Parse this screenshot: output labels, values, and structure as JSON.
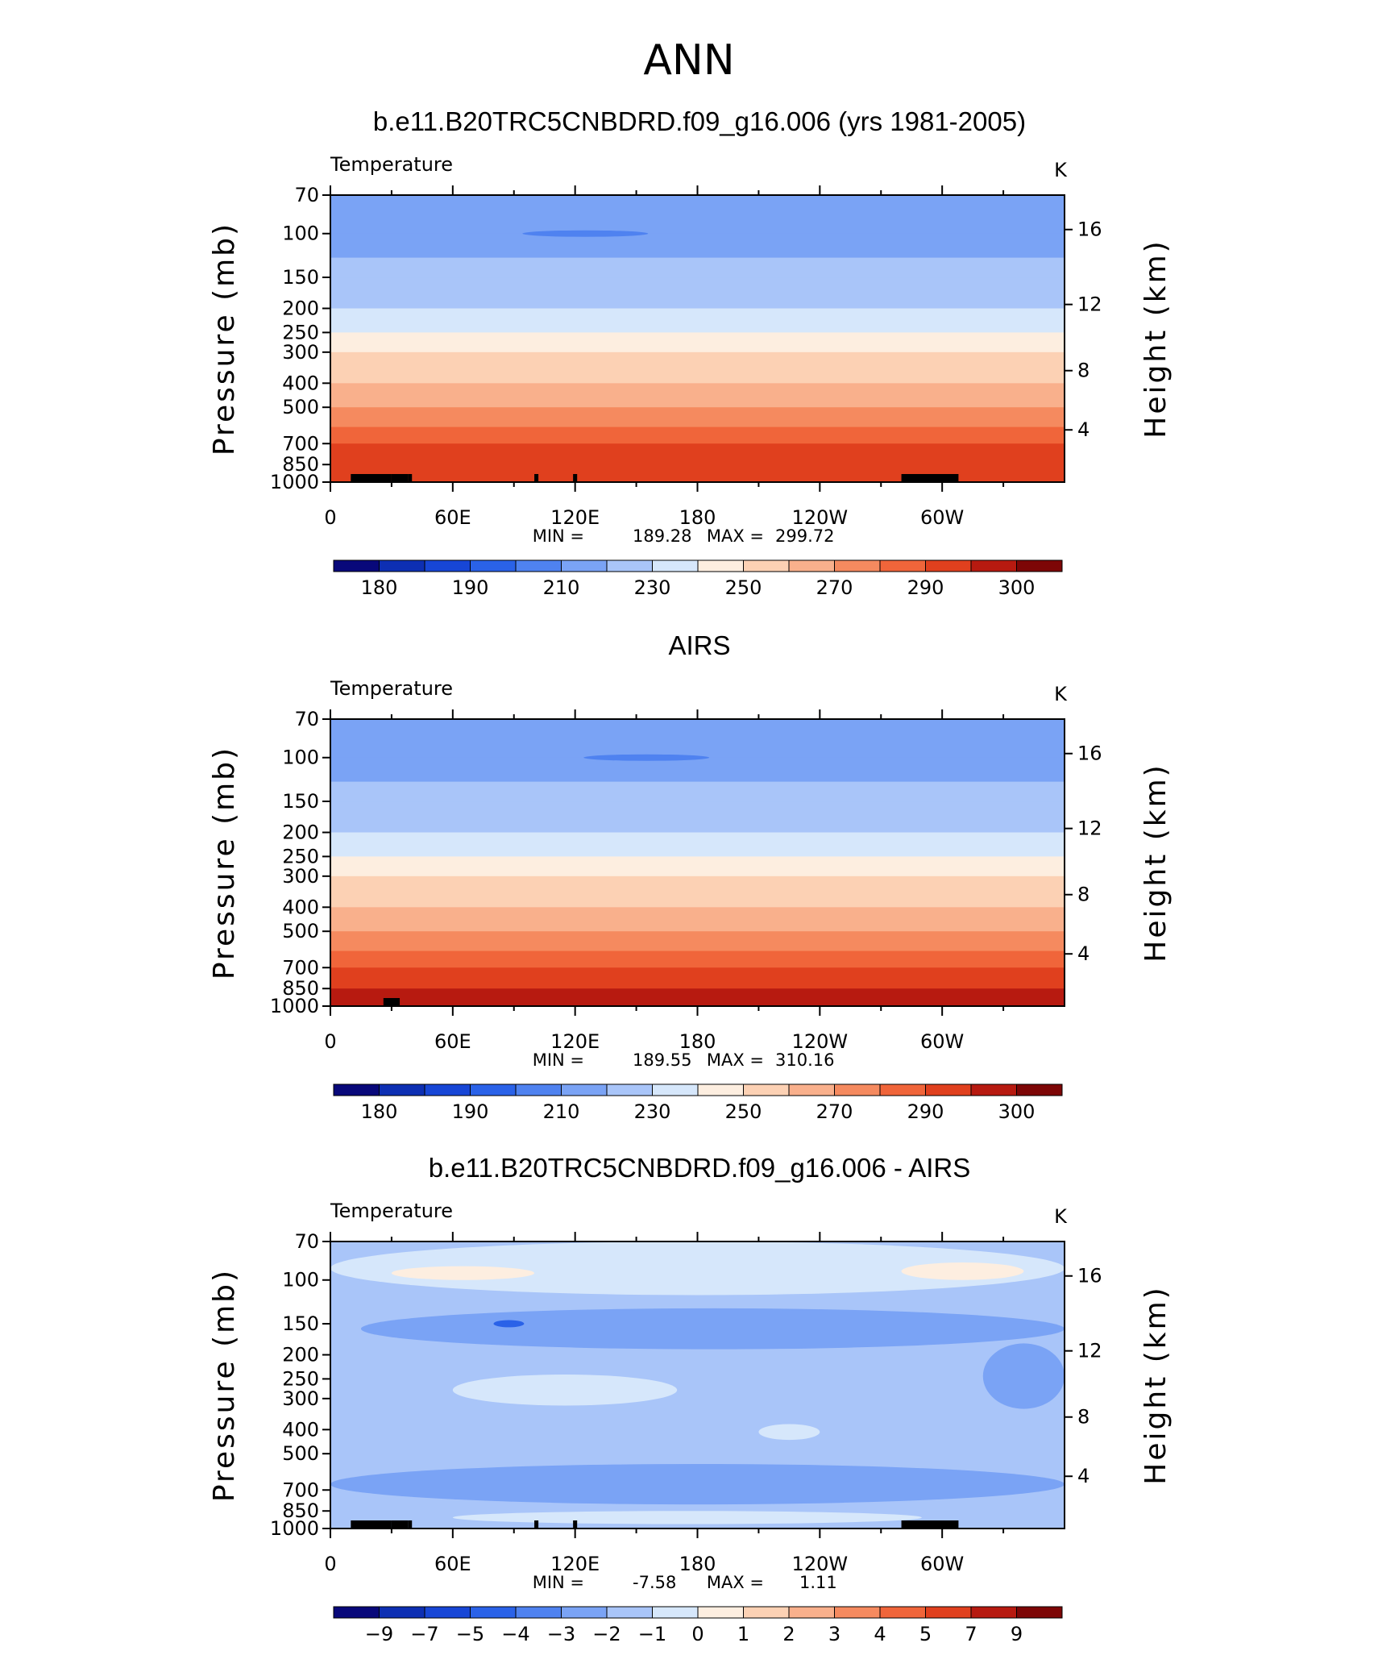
{
  "figure": {
    "title": "ANN"
  },
  "chart_data": [
    {
      "type": "heatmap",
      "title": "b.e11.B20TRC5CNBDRD.f09_g16.006 (yrs 1981-2005)",
      "variable": "Temperature",
      "units": "K",
      "ylabel": "Pressure (mb)",
      "y2label": "Height (km)",
      "x_ticks": [
        "0",
        "60E",
        "120E",
        "180",
        "120W",
        "60W"
      ],
      "y_ticks": [
        "70",
        "100",
        "150",
        "200",
        "250",
        "300",
        "400",
        "500",
        "700",
        "850",
        "1000"
      ],
      "y2_ticks": [
        "16",
        "12",
        "8",
        "4"
      ],
      "ylim": [
        1000,
        70
      ],
      "y_scale": "log",
      "min_label": "MIN =",
      "min": "189.28",
      "max_label": "MAX =",
      "max": "299.72",
      "colorbar_labels": [
        "180",
        "190",
        "210",
        "230",
        "250",
        "270",
        "290",
        "300"
      ],
      "colors": [
        "#08087a",
        "#0d2fb3",
        "#1746d6",
        "#2a62e8",
        "#4f82f0",
        "#7aa3f5",
        "#a9c5f9",
        "#d6e7fb",
        "#fdeee0",
        "#fcd1b4",
        "#f9b08c",
        "#f58a5f",
        "#f0653a",
        "#e0401e",
        "#b71a10",
        "#7d0606"
      ],
      "levels": [
        {
          "p": 70,
          "v": 206
        },
        {
          "p": 100,
          "v": 205
        },
        {
          "p": 125,
          "v": 209
        },
        {
          "p": 150,
          "v": 213
        },
        {
          "p": 200,
          "v": 218
        },
        {
          "p": 250,
          "v": 227
        },
        {
          "p": 300,
          "v": 236
        },
        {
          "p": 400,
          "v": 250
        },
        {
          "p": 500,
          "v": 262
        },
        {
          "p": 600,
          "v": 270
        },
        {
          "p": 700,
          "v": 277
        },
        {
          "p": 850,
          "v": 285
        },
        {
          "p": 1000,
          "v": 293
        }
      ],
      "cold_spot": {
        "lon": 125,
        "p": 100,
        "v": 190
      },
      "topo_cells": [
        [
          10,
          30
        ],
        [
          30,
          38
        ],
        [
          38,
          40
        ],
        [
          100,
          102
        ],
        [
          119,
          121
        ],
        [
          280,
          308
        ]
      ]
    },
    {
      "type": "heatmap",
      "title": "AIRS",
      "variable": "Temperature",
      "units": "K",
      "ylabel": "Pressure (mb)",
      "y2label": "Height (km)",
      "x_ticks": [
        "0",
        "60E",
        "120E",
        "180",
        "120W",
        "60W"
      ],
      "y_ticks": [
        "70",
        "100",
        "150",
        "200",
        "250",
        "300",
        "400",
        "500",
        "700",
        "850",
        "1000"
      ],
      "y2_ticks": [
        "16",
        "12",
        "8",
        "4"
      ],
      "ylim": [
        1000,
        70
      ],
      "y_scale": "log",
      "min_label": "MIN =",
      "min": "189.55",
      "max_label": "MAX =",
      "max": "310.16",
      "colorbar_labels": [
        "180",
        "190",
        "210",
        "230",
        "250",
        "270",
        "290",
        "300"
      ],
      "colors": [
        "#08087a",
        "#0d2fb3",
        "#1746d6",
        "#2a62e8",
        "#4f82f0",
        "#7aa3f5",
        "#a9c5f9",
        "#d6e7fb",
        "#fdeee0",
        "#fcd1b4",
        "#f9b08c",
        "#f58a5f",
        "#f0653a",
        "#e0401e",
        "#b71a10",
        "#7d0606"
      ],
      "levels": [
        {
          "p": 70,
          "v": 206
        },
        {
          "p": 100,
          "v": 205
        },
        {
          "p": 125,
          "v": 209
        },
        {
          "p": 150,
          "v": 213
        },
        {
          "p": 200,
          "v": 218
        },
        {
          "p": 250,
          "v": 227
        },
        {
          "p": 300,
          "v": 236
        },
        {
          "p": 400,
          "v": 250
        },
        {
          "p": 500,
          "v": 262
        },
        {
          "p": 600,
          "v": 270
        },
        {
          "p": 700,
          "v": 277
        },
        {
          "p": 850,
          "v": 287
        },
        {
          "p": 1000,
          "v": 298
        }
      ],
      "cold_spot": {
        "lon": 155,
        "p": 100,
        "v": 190
      },
      "topo_cells": [
        [
          26,
          34
        ]
      ]
    },
    {
      "type": "heatmap",
      "title": "b.e11.B20TRC5CNBDRD.f09_g16.006 - AIRS",
      "variable": "Temperature",
      "units": "K",
      "ylabel": "Pressure (mb)",
      "y2label": "Height (km)",
      "x_ticks": [
        "0",
        "60E",
        "120E",
        "180",
        "120W",
        "60W"
      ],
      "y_ticks": [
        "70",
        "100",
        "150",
        "200",
        "250",
        "300",
        "400",
        "500",
        "700",
        "850",
        "1000"
      ],
      "y2_ticks": [
        "16",
        "12",
        "8",
        "4"
      ],
      "ylim": [
        1000,
        70
      ],
      "y_scale": "log",
      "min_label": "MIN =",
      "min": "-7.58",
      "max_label": "MAX =",
      "max": "1.11",
      "colorbar_labels": [
        "-9",
        "-7",
        "-5",
        "-4",
        "-3",
        "-2",
        "-1",
        "0",
        "1",
        "2",
        "3",
        "4",
        "5",
        "7",
        "9"
      ],
      "colors": [
        "#08087a",
        "#0d2fb3",
        "#1746d6",
        "#2a62e8",
        "#4f82f0",
        "#7aa3f5",
        "#a9c5f9",
        "#d6e7fb",
        "#fdeee0",
        "#fcd1b4",
        "#f9b08c",
        "#f58a5f",
        "#f0653a",
        "#e0401e",
        "#b71a10",
        "#7d0606"
      ],
      "background_value": -1.5,
      "regions": [
        {
          "lon": [
            0,
            360
          ],
          "p": [
            70,
            115
          ],
          "v": -0.5
        },
        {
          "lon": [
            0,
            360
          ],
          "p": [
            550,
            800
          ],
          "v": -2.5
        },
        {
          "lon": [
            15,
            360
          ],
          "p": [
            130,
            190
          ],
          "v": -2.3
        },
        {
          "lon": [
            320,
            360
          ],
          "p": [
            180,
            330
          ],
          "v": -2.5
        },
        {
          "lon": [
            30,
            100
          ],
          "p": [
            88,
            100
          ],
          "v": 0.5
        },
        {
          "lon": [
            280,
            340
          ],
          "p": [
            85,
            100
          ],
          "v": 0.5
        },
        {
          "lon": [
            60,
            170
          ],
          "p": [
            240,
            320
          ],
          "v": -0.5
        },
        {
          "lon": [
            210,
            240
          ],
          "p": [
            380,
            440
          ],
          "v": -0.5
        },
        {
          "lon": [
            60,
            290
          ],
          "p": [
            850,
            960
          ],
          "v": -0.5
        },
        {
          "lon": [
            80,
            95
          ],
          "p": [
            145,
            155
          ],
          "v": -4.5
        }
      ],
      "topo_cells": [
        [
          10,
          30
        ],
        [
          30,
          38
        ],
        [
          38,
          40
        ],
        [
          100,
          102
        ],
        [
          119,
          121
        ],
        [
          280,
          308
        ]
      ]
    }
  ]
}
